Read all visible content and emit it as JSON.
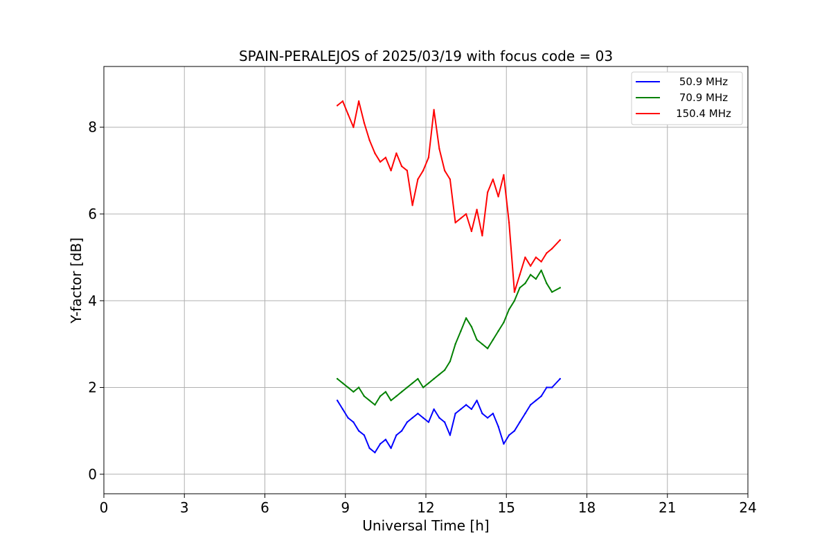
{
  "chart_data": {
    "type": "line",
    "title": "SPAIN-PERALEJOS of 2025/03/19 with focus code = 03",
    "xlabel": "Universal Time [h]",
    "ylabel": "Y-factor [dB]",
    "xlim": [
      0,
      24
    ],
    "ylim": [
      -0.45,
      9.4
    ],
    "xticks": [
      0,
      3,
      6,
      9,
      12,
      15,
      18,
      21,
      24
    ],
    "yticks": [
      0,
      2,
      4,
      6,
      8
    ],
    "grid": true,
    "legend": "top-right",
    "series": [
      {
        "name": "50.9 MHz",
        "color": "#0000ff",
        "x": [
          8.7,
          8.9,
          9.1,
          9.3,
          9.5,
          9.7,
          9.9,
          10.1,
          10.3,
          10.5,
          10.7,
          10.9,
          11.1,
          11.3,
          11.5,
          11.7,
          11.9,
          12.1,
          12.3,
          12.5,
          12.7,
          12.9,
          13.1,
          13.3,
          13.5,
          13.7,
          13.9,
          14.1,
          14.3,
          14.5,
          14.7,
          14.9,
          15.1,
          15.3,
          15.5,
          15.7,
          15.9,
          16.1,
          16.3,
          16.5,
          16.7,
          17.0
        ],
        "y": [
          1.7,
          1.5,
          1.3,
          1.2,
          1.0,
          0.9,
          0.6,
          0.5,
          0.7,
          0.8,
          0.6,
          0.9,
          1.0,
          1.2,
          1.3,
          1.4,
          1.3,
          1.2,
          1.5,
          1.3,
          1.2,
          0.9,
          1.4,
          1.5,
          1.6,
          1.5,
          1.7,
          1.4,
          1.3,
          1.4,
          1.1,
          0.7,
          0.9,
          1.0,
          1.2,
          1.4,
          1.6,
          1.7,
          1.8,
          2.0,
          2.0,
          2.2
        ]
      },
      {
        "name": "70.9 MHz",
        "color": "#008000",
        "x": [
          8.7,
          8.9,
          9.1,
          9.3,
          9.5,
          9.7,
          9.9,
          10.1,
          10.3,
          10.5,
          10.7,
          10.9,
          11.1,
          11.3,
          11.5,
          11.7,
          11.9,
          12.1,
          12.3,
          12.5,
          12.7,
          12.9,
          13.1,
          13.3,
          13.5,
          13.7,
          13.9,
          14.1,
          14.3,
          14.5,
          14.7,
          14.9,
          15.1,
          15.3,
          15.5,
          15.7,
          15.9,
          16.1,
          16.3,
          16.5,
          16.7,
          17.0
        ],
        "y": [
          2.2,
          2.1,
          2.0,
          1.9,
          2.0,
          1.8,
          1.7,
          1.6,
          1.8,
          1.9,
          1.7,
          1.8,
          1.9,
          2.0,
          2.1,
          2.2,
          2.0,
          2.1,
          2.2,
          2.3,
          2.4,
          2.6,
          3.0,
          3.3,
          3.6,
          3.4,
          3.1,
          3.0,
          2.9,
          3.1,
          3.3,
          3.5,
          3.8,
          4.0,
          4.3,
          4.4,
          4.6,
          4.5,
          4.7,
          4.4,
          4.2,
          4.3
        ]
      },
      {
        "name": "150.4 MHz",
        "color": "#ff0000",
        "x": [
          8.7,
          8.9,
          9.1,
          9.3,
          9.5,
          9.7,
          9.9,
          10.1,
          10.3,
          10.5,
          10.7,
          10.9,
          11.1,
          11.3,
          11.5,
          11.7,
          11.9,
          12.1,
          12.3,
          12.5,
          12.7,
          12.9,
          13.1,
          13.3,
          13.5,
          13.7,
          13.9,
          14.1,
          14.3,
          14.5,
          14.7,
          14.9,
          15.1,
          15.3,
          15.5,
          15.7,
          15.9,
          16.1,
          16.3,
          16.5,
          16.7,
          17.0
        ],
        "y": [
          8.5,
          8.6,
          8.3,
          8.0,
          8.6,
          8.1,
          7.7,
          7.4,
          7.2,
          7.3,
          7.0,
          7.4,
          7.1,
          7.0,
          6.2,
          6.8,
          7.0,
          7.3,
          8.4,
          7.5,
          7.0,
          6.8,
          5.8,
          5.9,
          6.0,
          5.6,
          6.1,
          5.5,
          6.5,
          6.8,
          6.4,
          6.9,
          5.8,
          4.2,
          4.6,
          5.0,
          4.8,
          5.0,
          4.9,
          5.1,
          5.2,
          5.4
        ]
      }
    ]
  }
}
